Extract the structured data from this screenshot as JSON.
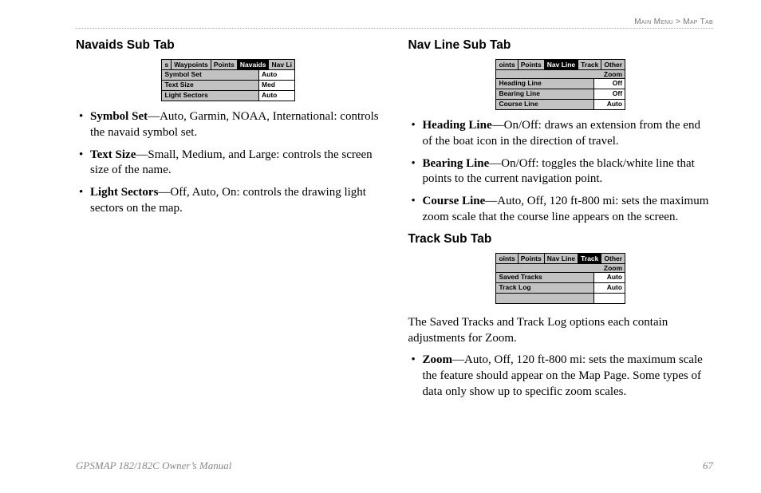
{
  "breadcrumb": {
    "left": "Main Menu",
    "sep": " > ",
    "right": "Map Tab"
  },
  "left": {
    "navaids": {
      "heading": "Navaids Sub Tab",
      "tabs": [
        "s",
        "Waypoints",
        "Points",
        "Navaids",
        "Nav Li"
      ],
      "active_index": 3,
      "rows": [
        {
          "label": "Symbol Set",
          "value": "Auto"
        },
        {
          "label": "Text Size",
          "value": "Med"
        },
        {
          "label": "Light Sectors",
          "value": "Auto"
        }
      ],
      "bullets": [
        {
          "term": "Symbol Set",
          "desc": "—Auto, Garmin, NOAA, International: controls the navaid symbol set."
        },
        {
          "term": "Text Size",
          "desc": "—Small, Medium, and Large: controls the screen size of the name."
        },
        {
          "term": "Light Sectors",
          "desc": "—Off, Auto, On: controls the drawing light sectors on the map."
        }
      ]
    }
  },
  "right": {
    "navline": {
      "heading": "Nav Line Sub Tab",
      "tabs": [
        "oints",
        "Points",
        "Nav Line",
        "Track",
        "Other"
      ],
      "active_index": 2,
      "subheader": "Zoom",
      "rows": [
        {
          "label": "Heading Line",
          "value": "Off"
        },
        {
          "label": "Bearing Line",
          "value": "Off"
        },
        {
          "label": "Course Line",
          "value": "Auto"
        }
      ],
      "bullets": [
        {
          "term": "Heading Line",
          "desc": "—On/Off: draws an extension from the end of the boat icon in the direction of travel."
        },
        {
          "term": "Bearing Line",
          "desc": "—On/Off: toggles the black/white line that points to the current navigation point."
        },
        {
          "term": "Course Line",
          "desc": "—Auto, Off, 120 ft-800 mi: sets the maximum zoom scale that the course line appears on the screen."
        }
      ]
    },
    "track": {
      "heading": "Track Sub Tab",
      "tabs": [
        "oints",
        "Points",
        "Nav Line",
        "Track",
        "Other"
      ],
      "active_index": 3,
      "subheader": "Zoom",
      "rows": [
        {
          "label": "Saved Tracks",
          "value": "Auto"
        },
        {
          "label": "Track Log",
          "value": "Auto"
        },
        {
          "label": "",
          "value": ""
        }
      ],
      "body": "The Saved Tracks and Track Log options each contain adjustments for Zoom.",
      "bullets": [
        {
          "term": "Zoom",
          "desc": "—Auto, Off, 120 ft-800 mi: sets the maximum scale the feature should appear on the Map Page. Some types of data only show up to specific zoom scales."
        }
      ]
    }
  },
  "footer": {
    "manual": "GPSMAP 182/182C Owner’s Manual",
    "page": "67"
  }
}
